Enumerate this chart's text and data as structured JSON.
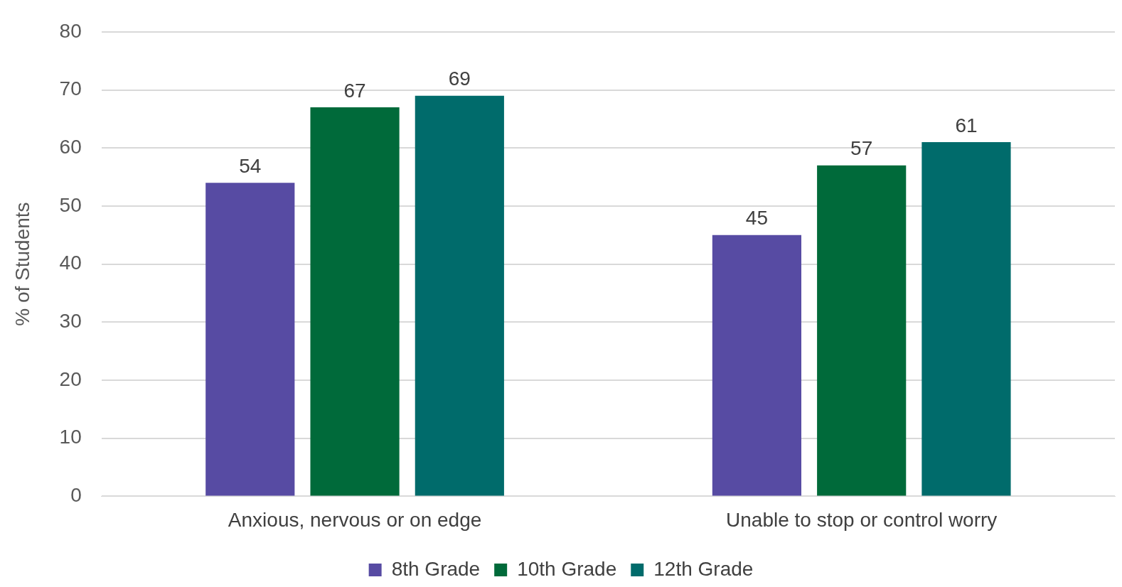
{
  "chart_data": {
    "type": "bar",
    "ylabel": "% of Students",
    "categories": [
      "Anxious, nervous or on edge",
      "Unable to stop or control worry"
    ],
    "series": [
      {
        "name": "8th Grade",
        "color": "#574ba3",
        "values": [
          54,
          45
        ]
      },
      {
        "name": "10th Grade",
        "color": "#006a3a",
        "values": [
          67,
          57
        ]
      },
      {
        "name": "12th Grade",
        "color": "#006b6b",
        "values": [
          69,
          61
        ]
      }
    ],
    "ylim": [
      0,
      80
    ],
    "yticks": [
      0,
      10,
      20,
      30,
      40,
      50,
      60,
      70,
      80
    ],
    "grid": "y",
    "legend": "bottom",
    "data_labels": true
  }
}
